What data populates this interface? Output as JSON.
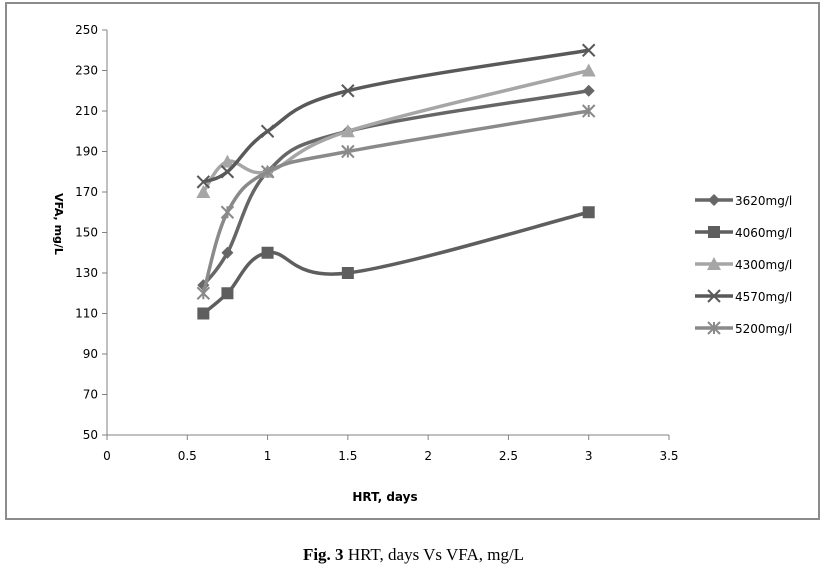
{
  "chart_data": {
    "type": "line",
    "title": "",
    "xlabel": "HRT, days",
    "ylabel": "VFA, mg/L",
    "xlim": [
      0,
      3.5
    ],
    "ylim": [
      50,
      250
    ],
    "x_ticks": [
      0,
      0.5,
      1,
      1.5,
      2,
      2.5,
      3,
      3.5
    ],
    "y_ticks": [
      50,
      70,
      90,
      110,
      130,
      150,
      170,
      190,
      210,
      230,
      250
    ],
    "grid": false,
    "legend_position": "right",
    "series": [
      {
        "name": "3620mg/l",
        "marker": "diamond",
        "color": "#666666",
        "x": [
          0.6,
          0.75,
          1,
          1.5,
          3
        ],
        "y": [
          124,
          140,
          180,
          200,
          220
        ]
      },
      {
        "name": "4060mg/l",
        "marker": "square",
        "color": "#5e5e5e",
        "x": [
          0.6,
          0.75,
          1,
          1.5,
          3
        ],
        "y": [
          110,
          120,
          140,
          130,
          160
        ]
      },
      {
        "name": "4300mg/l",
        "marker": "triangle",
        "color": "#a6a6a6",
        "x": [
          0.6,
          0.75,
          1,
          1.5,
          3
        ],
        "y": [
          170,
          185,
          180,
          200,
          230
        ]
      },
      {
        "name": "4570mg/l",
        "marker": "x",
        "color": "#595959",
        "x": [
          0.6,
          0.75,
          1,
          1.5,
          3
        ],
        "y": [
          175,
          180,
          200,
          220,
          240
        ]
      },
      {
        "name": "5200mg/l",
        "marker": "asterisk",
        "color": "#8a8a8a",
        "x": [
          0.6,
          0.75,
          1,
          1.5,
          3
        ],
        "y": [
          120,
          160,
          180,
          190,
          210
        ]
      }
    ]
  },
  "caption": {
    "label": "Fig. 3",
    "text": " HRT, days Vs VFA, mg/L"
  }
}
